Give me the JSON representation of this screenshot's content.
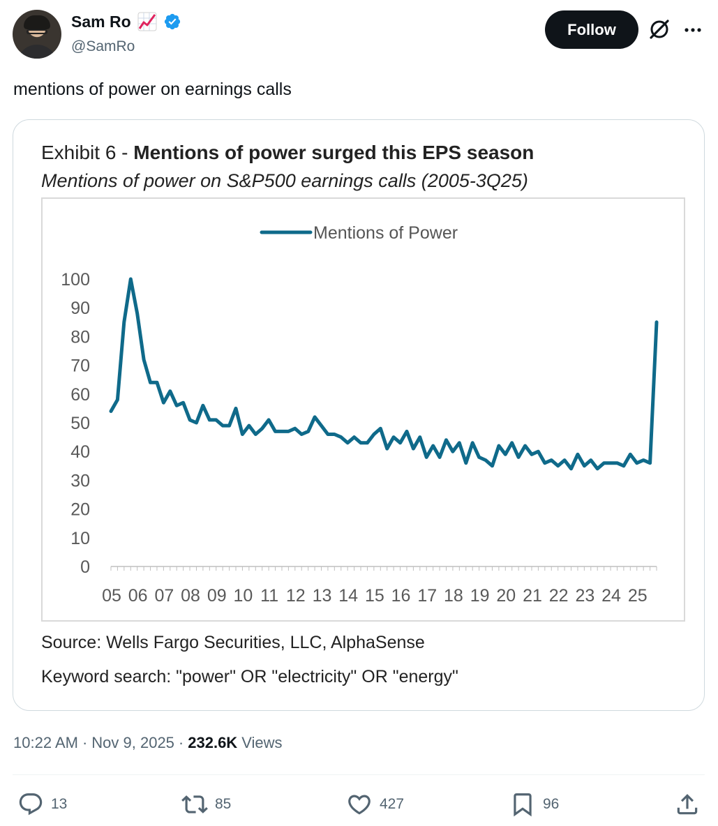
{
  "author": {
    "name": "Sam Ro",
    "emoji": "chart-increasing-emoji",
    "verified": true,
    "handle": "@SamRo"
  },
  "follow_label": "Follow",
  "tweet_text": "mentions of power on earnings calls",
  "chart_data": {
    "type": "line",
    "title_prefix": "Exhibit 6 - ",
    "title": "Mentions of power surged this EPS season",
    "subtitle": "Mentions of power on S&P500 earnings calls (2005-3Q25)",
    "legend": "Mentions of Power",
    "legend_position": "top-center",
    "series_color": "#0f6a8a",
    "ylim": [
      0,
      100
    ],
    "yticks": [
      "100",
      "90",
      "80",
      "70",
      "60",
      "50",
      "40",
      "30",
      "20",
      "10",
      "0"
    ],
    "xticks": [
      "05",
      "06",
      "07",
      "08",
      "09",
      "10",
      "11",
      "12",
      "13",
      "14",
      "15",
      "16",
      "17",
      "18",
      "19",
      "20",
      "21",
      "22",
      "23",
      "24",
      "25"
    ],
    "x": [
      2005.0,
      2005.25,
      2005.5,
      2005.75,
      2006.0,
      2006.25,
      2006.5,
      2006.75,
      2007.0,
      2007.25,
      2007.5,
      2007.75,
      2008.0,
      2008.25,
      2008.5,
      2008.75,
      2009.0,
      2009.25,
      2009.5,
      2009.75,
      2010.0,
      2010.25,
      2010.5,
      2010.75,
      2011.0,
      2011.25,
      2011.5,
      2011.75,
      2012.0,
      2012.25,
      2012.5,
      2012.75,
      2013.0,
      2013.25,
      2013.5,
      2013.75,
      2014.0,
      2014.25,
      2014.5,
      2014.75,
      2015.0,
      2015.25,
      2015.5,
      2015.75,
      2016.0,
      2016.25,
      2016.5,
      2016.75,
      2017.0,
      2017.25,
      2017.5,
      2017.75,
      2018.0,
      2018.25,
      2018.5,
      2018.75,
      2019.0,
      2019.25,
      2019.5,
      2019.75,
      2020.0,
      2020.25,
      2020.5,
      2020.75,
      2021.0,
      2021.25,
      2021.5,
      2021.75,
      2022.0,
      2022.25,
      2022.5,
      2022.75,
      2023.0,
      2023.25,
      2023.5,
      2023.75,
      2024.0,
      2024.25,
      2024.5,
      2024.75,
      2025.0,
      2025.25,
      2025.5,
      2025.75
    ],
    "values": [
      54,
      58,
      85,
      100,
      88,
      72,
      64,
      64,
      57,
      61,
      56,
      57,
      51,
      50,
      56,
      51,
      51,
      49,
      49,
      55,
      46,
      49,
      46,
      48,
      51,
      47,
      47,
      47,
      48,
      46,
      47,
      52,
      49,
      46,
      46,
      45,
      43,
      45,
      43,
      43,
      46,
      48,
      41,
      45,
      43,
      47,
      41,
      45,
      38,
      42,
      38,
      44,
      40,
      43,
      36,
      43,
      38,
      37,
      35,
      42,
      39,
      43,
      38,
      42,
      39,
      40,
      36,
      37,
      35,
      37,
      34,
      39,
      35,
      37,
      34,
      36,
      36,
      36,
      35,
      39,
      36,
      37,
      36,
      85
    ],
    "source": "Source: Wells Fargo Securities, LLC, AlphaSense",
    "note": "Keyword search: \"power\" OR \"electricity\" OR \"energy\""
  },
  "meta": {
    "time": "10:22 AM",
    "separator": "·",
    "date": "Nov 9, 2025",
    "views_count": "232.6K",
    "views_label": "Views"
  },
  "actions": {
    "replies": "13",
    "reposts": "85",
    "likes": "427",
    "bookmarks": "96"
  }
}
